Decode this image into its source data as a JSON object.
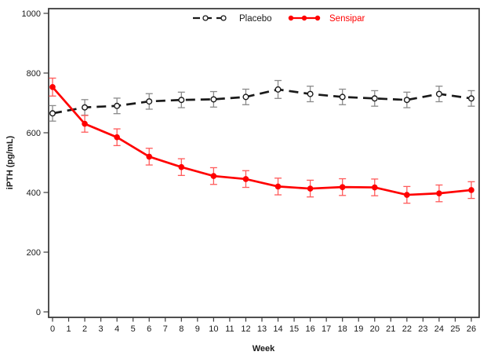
{
  "chart_data": {
    "type": "line",
    "title": "",
    "xlabel": "Week",
    "ylabel": "iPTH (pg/mL)",
    "xlim": [
      -0.25,
      26.5
    ],
    "ylim": [
      0,
      1000
    ],
    "xticks": [
      0,
      1,
      2,
      3,
      4,
      5,
      6,
      7,
      8,
      9,
      10,
      11,
      12,
      13,
      14,
      15,
      16,
      17,
      18,
      19,
      20,
      21,
      22,
      23,
      24,
      25,
      26
    ],
    "yticks": [
      0,
      200,
      400,
      600,
      800,
      1000
    ],
    "grid": false,
    "legend_position": "top-center",
    "x": [
      0,
      2,
      4,
      6,
      8,
      10,
      12,
      14,
      16,
      18,
      20,
      22,
      24,
      26
    ],
    "series": [
      {
        "name": "Placebo",
        "line_style": "dashed",
        "marker": "open-circle",
        "color": "#1a1a1a",
        "errorbar_color": "#8a8a8a",
        "values": [
          665,
          685,
          690,
          705,
          710,
          712,
          720,
          745,
          730,
          720,
          715,
          710,
          730,
          715
        ],
        "errors": [
          26,
          26,
          26,
          26,
          26,
          26,
          26,
          30,
          26,
          26,
          26,
          26,
          26,
          26
        ]
      },
      {
        "name": "Sensipar",
        "line_style": "solid",
        "marker": "filled-circle",
        "color": "#ff0000",
        "errorbar_color": "#ff5a5a",
        "values": [
          753,
          630,
          585,
          520,
          485,
          455,
          445,
          420,
          413,
          418,
          417,
          392,
          397,
          408
        ],
        "errors": [
          30,
          28,
          28,
          28,
          28,
          28,
          28,
          28,
          28,
          28,
          28,
          28,
          28,
          28
        ]
      }
    ]
  },
  "colors": {
    "background": "#ffffff",
    "frame": "#3d3d3d",
    "tick_text": "#1a1a1a"
  }
}
